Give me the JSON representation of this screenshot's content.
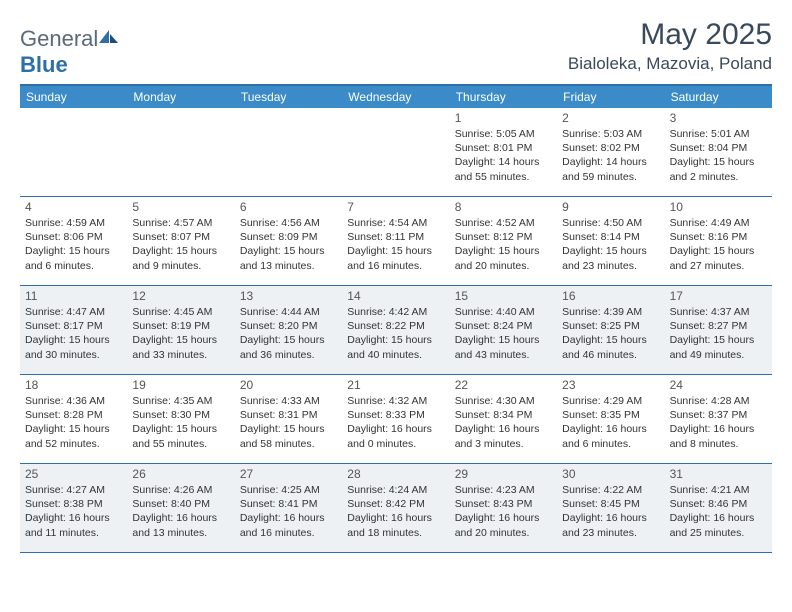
{
  "brand": {
    "name_left": "General",
    "name_right": "Blue"
  },
  "title": "May 2025",
  "location": "Bialoleka, Mazovia, Poland",
  "colors": {
    "header_bar": "#3b8bc8",
    "rule": "#2f6fa8",
    "shade": "#eef1f4",
    "text": "#333333",
    "title": "#3a4a5a"
  },
  "dow": [
    "Sunday",
    "Monday",
    "Tuesday",
    "Wednesday",
    "Thursday",
    "Friday",
    "Saturday"
  ],
  "weeks": [
    {
      "shade": false,
      "days": [
        null,
        null,
        null,
        null,
        {
          "n": 1,
          "sr": "5:05 AM",
          "ss": "8:01 PM",
          "d": "14 hours and 55 minutes."
        },
        {
          "n": 2,
          "sr": "5:03 AM",
          "ss": "8:02 PM",
          "d": "14 hours and 59 minutes."
        },
        {
          "n": 3,
          "sr": "5:01 AM",
          "ss": "8:04 PM",
          "d": "15 hours and 2 minutes."
        }
      ]
    },
    {
      "shade": false,
      "days": [
        {
          "n": 4,
          "sr": "4:59 AM",
          "ss": "8:06 PM",
          "d": "15 hours and 6 minutes."
        },
        {
          "n": 5,
          "sr": "4:57 AM",
          "ss": "8:07 PM",
          "d": "15 hours and 9 minutes."
        },
        {
          "n": 6,
          "sr": "4:56 AM",
          "ss": "8:09 PM",
          "d": "15 hours and 13 minutes."
        },
        {
          "n": 7,
          "sr": "4:54 AM",
          "ss": "8:11 PM",
          "d": "15 hours and 16 minutes."
        },
        {
          "n": 8,
          "sr": "4:52 AM",
          "ss": "8:12 PM",
          "d": "15 hours and 20 minutes."
        },
        {
          "n": 9,
          "sr": "4:50 AM",
          "ss": "8:14 PM",
          "d": "15 hours and 23 minutes."
        },
        {
          "n": 10,
          "sr": "4:49 AM",
          "ss": "8:16 PM",
          "d": "15 hours and 27 minutes."
        }
      ]
    },
    {
      "shade": true,
      "days": [
        {
          "n": 11,
          "sr": "4:47 AM",
          "ss": "8:17 PM",
          "d": "15 hours and 30 minutes."
        },
        {
          "n": 12,
          "sr": "4:45 AM",
          "ss": "8:19 PM",
          "d": "15 hours and 33 minutes."
        },
        {
          "n": 13,
          "sr": "4:44 AM",
          "ss": "8:20 PM",
          "d": "15 hours and 36 minutes."
        },
        {
          "n": 14,
          "sr": "4:42 AM",
          "ss": "8:22 PM",
          "d": "15 hours and 40 minutes."
        },
        {
          "n": 15,
          "sr": "4:40 AM",
          "ss": "8:24 PM",
          "d": "15 hours and 43 minutes."
        },
        {
          "n": 16,
          "sr": "4:39 AM",
          "ss": "8:25 PM",
          "d": "15 hours and 46 minutes."
        },
        {
          "n": 17,
          "sr": "4:37 AM",
          "ss": "8:27 PM",
          "d": "15 hours and 49 minutes."
        }
      ]
    },
    {
      "shade": false,
      "days": [
        {
          "n": 18,
          "sr": "4:36 AM",
          "ss": "8:28 PM",
          "d": "15 hours and 52 minutes."
        },
        {
          "n": 19,
          "sr": "4:35 AM",
          "ss": "8:30 PM",
          "d": "15 hours and 55 minutes."
        },
        {
          "n": 20,
          "sr": "4:33 AM",
          "ss": "8:31 PM",
          "d": "15 hours and 58 minutes."
        },
        {
          "n": 21,
          "sr": "4:32 AM",
          "ss": "8:33 PM",
          "d": "16 hours and 0 minutes."
        },
        {
          "n": 22,
          "sr": "4:30 AM",
          "ss": "8:34 PM",
          "d": "16 hours and 3 minutes."
        },
        {
          "n": 23,
          "sr": "4:29 AM",
          "ss": "8:35 PM",
          "d": "16 hours and 6 minutes."
        },
        {
          "n": 24,
          "sr": "4:28 AM",
          "ss": "8:37 PM",
          "d": "16 hours and 8 minutes."
        }
      ]
    },
    {
      "shade": true,
      "days": [
        {
          "n": 25,
          "sr": "4:27 AM",
          "ss": "8:38 PM",
          "d": "16 hours and 11 minutes."
        },
        {
          "n": 26,
          "sr": "4:26 AM",
          "ss": "8:40 PM",
          "d": "16 hours and 13 minutes."
        },
        {
          "n": 27,
          "sr": "4:25 AM",
          "ss": "8:41 PM",
          "d": "16 hours and 16 minutes."
        },
        {
          "n": 28,
          "sr": "4:24 AM",
          "ss": "8:42 PM",
          "d": "16 hours and 18 minutes."
        },
        {
          "n": 29,
          "sr": "4:23 AM",
          "ss": "8:43 PM",
          "d": "16 hours and 20 minutes."
        },
        {
          "n": 30,
          "sr": "4:22 AM",
          "ss": "8:45 PM",
          "d": "16 hours and 23 minutes."
        },
        {
          "n": 31,
          "sr": "4:21 AM",
          "ss": "8:46 PM",
          "d": "16 hours and 25 minutes."
        }
      ]
    }
  ],
  "labels": {
    "sunrise": "Sunrise:",
    "sunset": "Sunset:",
    "daylight": "Daylight:"
  }
}
